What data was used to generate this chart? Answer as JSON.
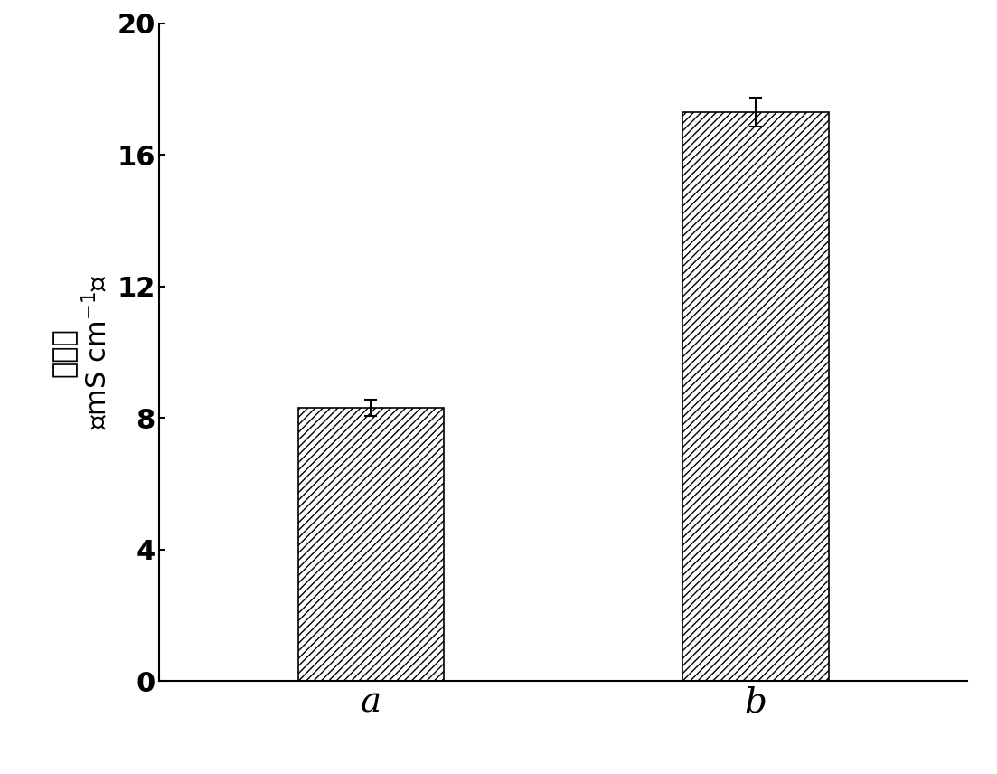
{
  "categories": [
    "a",
    "b"
  ],
  "values": [
    8.3,
    17.3
  ],
  "errors": [
    0.25,
    0.45
  ],
  "ylim": [
    0,
    20
  ],
  "yticks": [
    0,
    4,
    8,
    12,
    16,
    20
  ],
  "bar_width": 0.38,
  "bar_facecolor": "white",
  "bar_edgecolor": "black",
  "hatch": "////",
  "background_color": "white",
  "ytick_fontsize": 22,
  "xlabel_fontsize": 28,
  "ylabel_chinese": "电导率",
  "ylabel_units": "mS cm$^{-1}$",
  "spine_linewidth": 1.5,
  "error_capsize": 5,
  "error_linewidth": 1.5
}
